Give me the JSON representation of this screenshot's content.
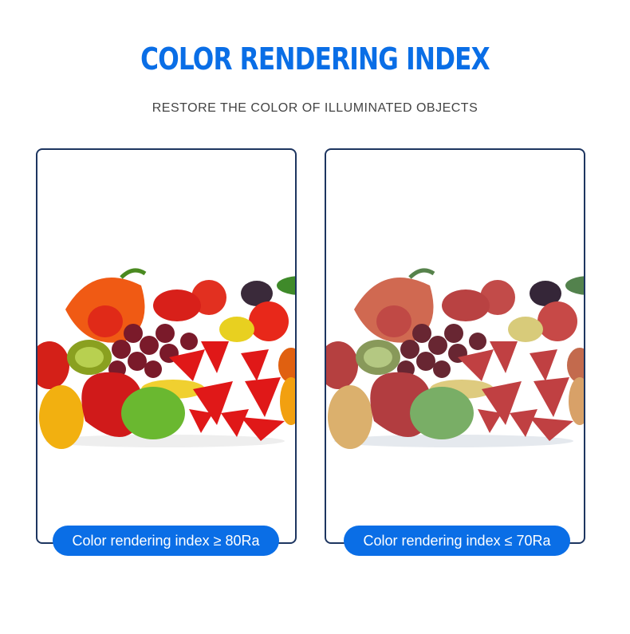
{
  "header": {
    "title": "COLOR RENDERING INDEX",
    "subtitle": "RESTORE THE COLOR OF ILLUMINATED OBJECTS"
  },
  "comparisons": [
    {
      "label": "Color rendering index ≥ 80Ra",
      "image": "vivid-fruit-pile"
    },
    {
      "label": "Color rendering index ≤ 70Ra",
      "image": "dull-fruit-pile"
    }
  ],
  "colors": {
    "accent": "#0a6ee6",
    "border": "#1d3560"
  }
}
